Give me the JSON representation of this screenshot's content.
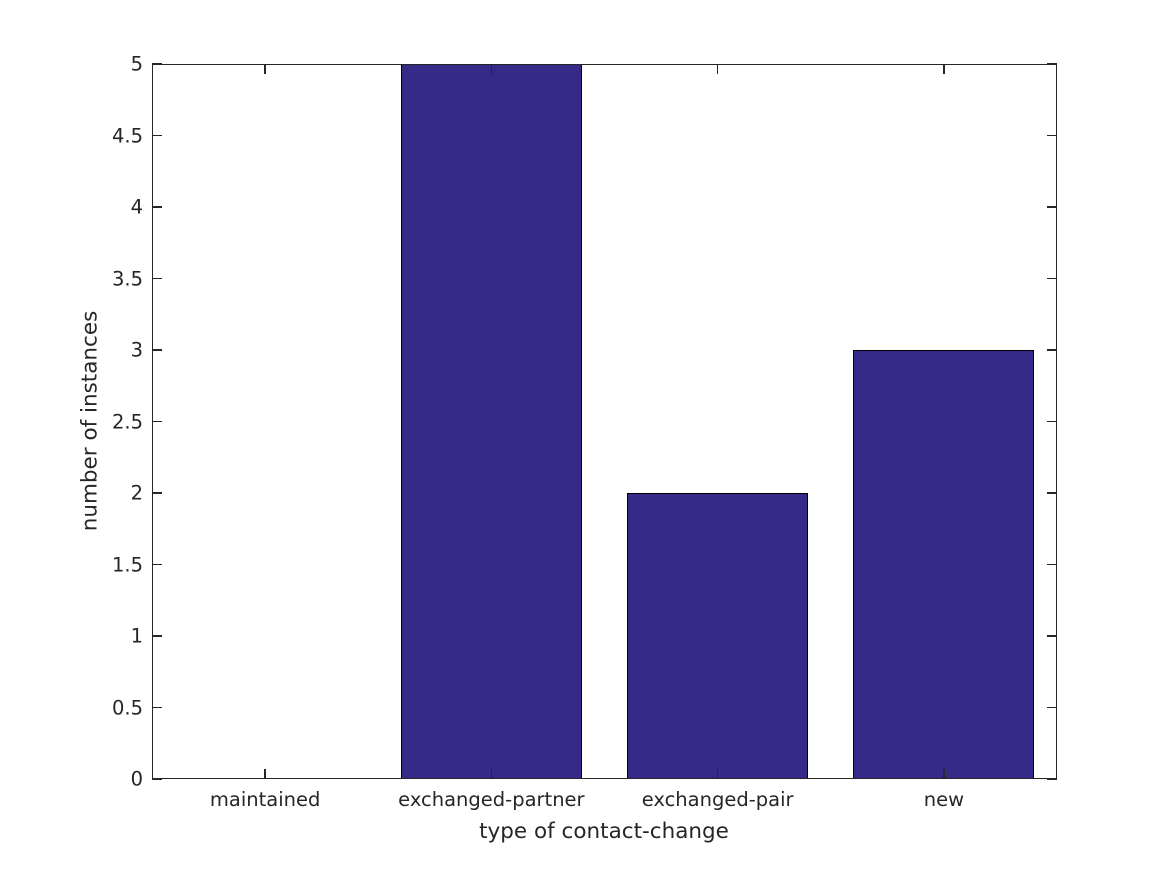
{
  "chart_data": {
    "type": "bar",
    "title": "",
    "xlabel": "type of contact-change",
    "ylabel": "number of instances",
    "categories": [
      "maintained",
      "exchanged-partner",
      "exchanged-pair",
      "new"
    ],
    "values": [
      0,
      5,
      2,
      3
    ],
    "ylim": [
      0,
      5
    ],
    "yticks": [
      0,
      0.5,
      1,
      1.5,
      2,
      2.5,
      3,
      3.5,
      4,
      4.5,
      5
    ],
    "ytick_labels": [
      "0",
      "0.5",
      "1",
      "1.5",
      "2",
      "2.5",
      "3",
      "3.5",
      "4",
      "4.5",
      "5"
    ],
    "bar_width_fraction": 0.8,
    "bar_color": "#352A87",
    "bar_edge_color": "#000000",
    "axis_color": "#262626",
    "background_color": "#ffffff",
    "grid": false,
    "legend": null,
    "tick_direction": "in",
    "box": true
  }
}
